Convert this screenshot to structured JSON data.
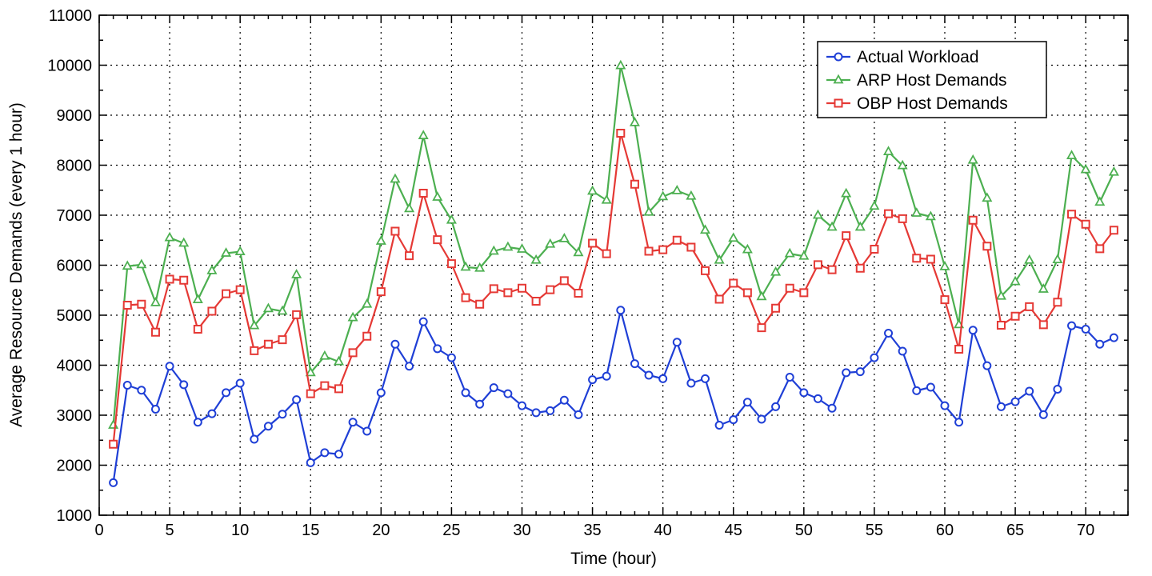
{
  "chart_data": {
    "type": "line",
    "title": "",
    "xlabel": "Time (hour)",
    "ylabel": "Average Resource Demands (every 1 hour)",
    "xlim": [
      0,
      73
    ],
    "ylim": [
      1000,
      11000
    ],
    "xticks": [
      0,
      5,
      10,
      15,
      20,
      25,
      30,
      35,
      40,
      45,
      50,
      55,
      60,
      65,
      70
    ],
    "yticks": [
      1000,
      2000,
      3000,
      4000,
      5000,
      6000,
      7000,
      8000,
      9000,
      10000,
      11000
    ],
    "grid": true,
    "legend_position": "top-right",
    "x": [
      1,
      2,
      3,
      4,
      5,
      6,
      7,
      8,
      9,
      10,
      11,
      12,
      13,
      14,
      15,
      16,
      17,
      18,
      19,
      20,
      21,
      22,
      23,
      24,
      25,
      26,
      27,
      28,
      29,
      30,
      31,
      32,
      33,
      34,
      35,
      36,
      37,
      38,
      39,
      40,
      41,
      42,
      43,
      44,
      45,
      46,
      47,
      48,
      49,
      50,
      51,
      52,
      53,
      54,
      55,
      56,
      57,
      58,
      59,
      60,
      61,
      62,
      63,
      64,
      65,
      66,
      67,
      68,
      69,
      70,
      71,
      72
    ],
    "series": [
      {
        "name": "Actual Workload",
        "color": "#1f3fd6",
        "marker": "circle",
        "values": [
          1650,
          3600,
          3500,
          3120,
          3980,
          3610,
          2860,
          3030,
          3450,
          3640,
          2520,
          2780,
          3020,
          3310,
          2050,
          2250,
          2220,
          2860,
          2680,
          3450,
          4420,
          3980,
          4870,
          4330,
          4150,
          3450,
          3220,
          3550,
          3430,
          3190,
          3050,
          3090,
          3300,
          3010,
          3710,
          3780,
          5100,
          4030,
          3800,
          3730,
          4460,
          3640,
          3730,
          2800,
          2910,
          3260,
          2920,
          3170,
          3760,
          3450,
          3330,
          3140,
          3850,
          3870,
          4150,
          4640,
          4280,
          3490,
          3560,
          3190,
          2860,
          4700,
          3990,
          3170,
          3270,
          3480,
          3010,
          3520,
          4790,
          4720,
          4420,
          4550
        ]
      },
      {
        "name": "ARP Host Demands",
        "color": "#4caf50",
        "marker": "triangle",
        "values": [
          2800,
          5980,
          6010,
          5250,
          6550,
          6440,
          5310,
          5890,
          6240,
          6270,
          4790,
          5130,
          5080,
          5810,
          3850,
          4180,
          4070,
          4950,
          5220,
          6480,
          7720,
          7130,
          8590,
          7360,
          6900,
          5960,
          5940,
          6280,
          6360,
          6320,
          6100,
          6420,
          6530,
          6250,
          7480,
          7300,
          9990,
          8850,
          7060,
          7370,
          7490,
          7380,
          6700,
          6100,
          6540,
          6310,
          5370,
          5860,
          6230,
          6180,
          7000,
          6760,
          7430,
          6760,
          7180,
          8270,
          7990,
          7040,
          6970,
          5970,
          4810,
          8100,
          7340,
          5380,
          5670,
          6100,
          5520,
          6110,
          8190,
          7910,
          7260,
          7860
        ]
      },
      {
        "name": "OBP Host Demands",
        "color": "#e53935",
        "marker": "square",
        "values": [
          2420,
          5200,
          5220,
          4660,
          5720,
          5700,
          4720,
          5080,
          5430,
          5510,
          4290,
          4420,
          4510,
          5010,
          3430,
          3590,
          3530,
          4250,
          4580,
          5470,
          6680,
          6190,
          7440,
          6510,
          6030,
          5350,
          5220,
          5530,
          5450,
          5540,
          5280,
          5510,
          5690,
          5440,
          6440,
          6230,
          8640,
          7620,
          6280,
          6310,
          6500,
          6360,
          5890,
          5320,
          5640,
          5450,
          4750,
          5140,
          5540,
          5450,
          6010,
          5910,
          6590,
          5940,
          6320,
          7030,
          6930,
          6140,
          6120,
          5310,
          4320,
          6900,
          6380,
          4800,
          4980,
          5170,
          4810,
          5260,
          7020,
          6820,
          6330,
          6700
        ]
      }
    ]
  }
}
